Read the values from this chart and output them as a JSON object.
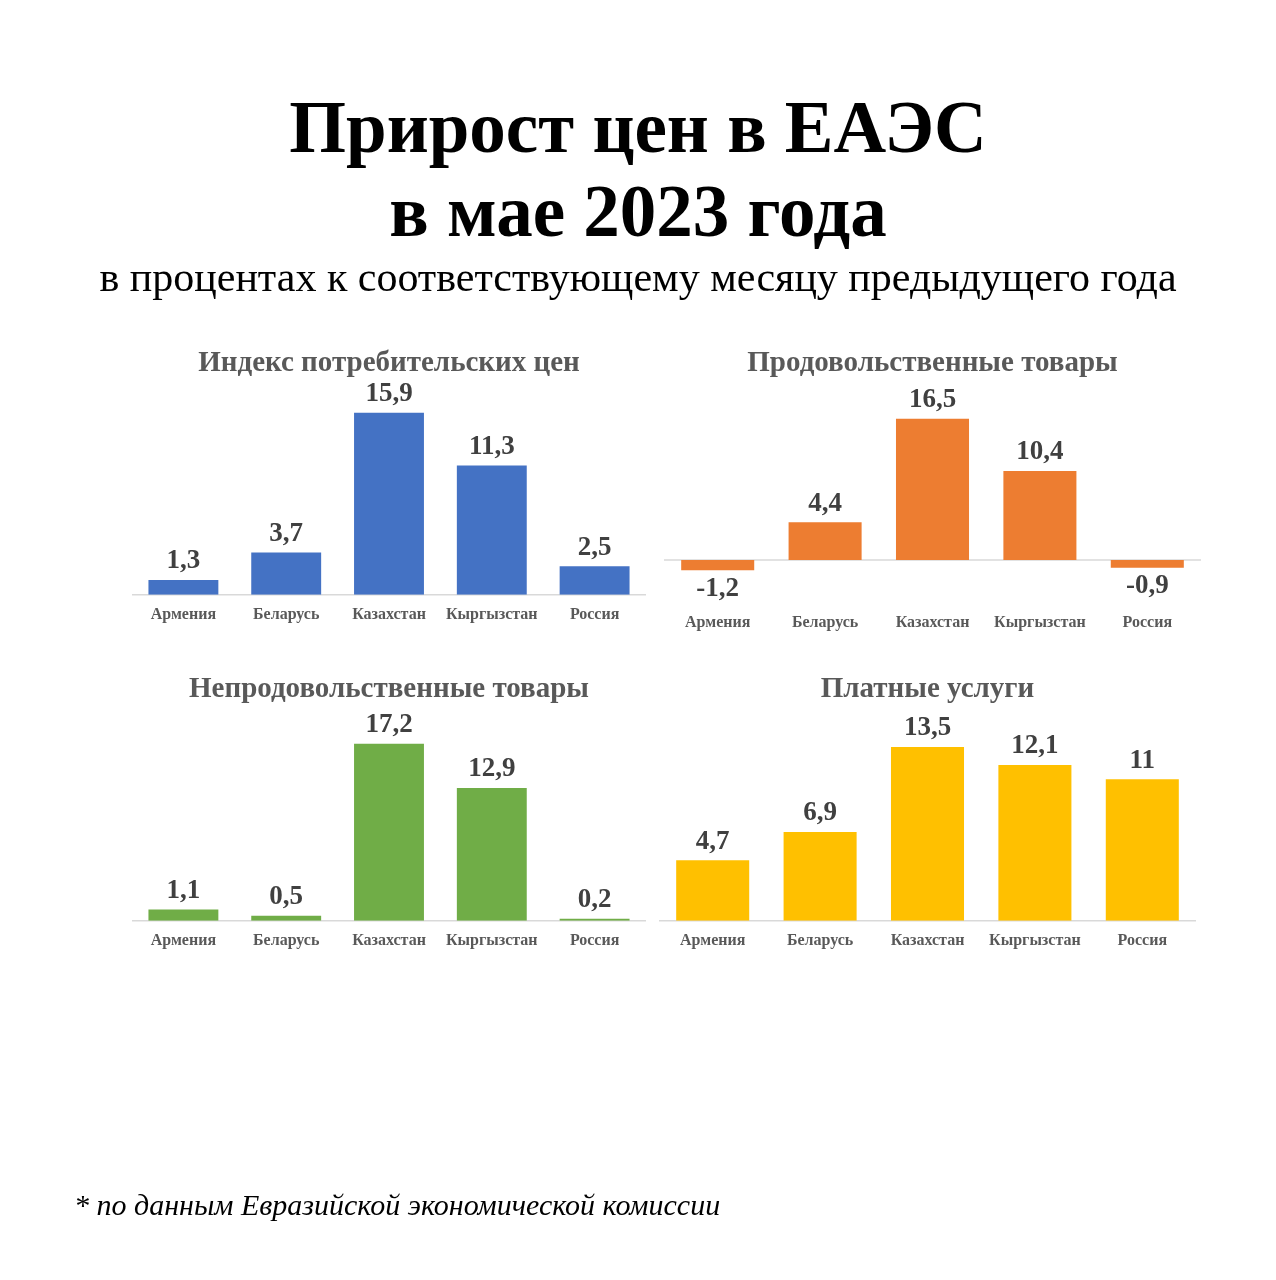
{
  "chart_data": [
    {
      "type": "other",
      "title": "Прирост цен в ЕАЭС в мае 2023 года",
      "subtitle": "в процентах к соответствующему месяцу предыдущего года",
      "annotations": [
        "* по данным Евразийской экономической комиссии"
      ]
    },
    {
      "type": "bar",
      "title": "Индекс потребительских цен",
      "categories": [
        "Армения",
        "Беларусь",
        "Казахстан",
        "Кыргызстан",
        "Россия"
      ],
      "values": [
        1.3,
        3.7,
        15.9,
        11.3,
        2.5
      ],
      "value_labels": [
        "1,3",
        "3,7",
        "15,9",
        "11,3",
        "2,5"
      ],
      "color": "#4472c4"
    },
    {
      "type": "bar",
      "title": "Продовольственные товары",
      "categories": [
        "Армения",
        "Беларусь",
        "Казахстан",
        "Кыргызстан",
        "Россия"
      ],
      "values": [
        -1.2,
        4.4,
        16.5,
        10.4,
        -0.9
      ],
      "value_labels": [
        "-1,2",
        "4,4",
        "16,5",
        "10,4",
        "-0,9"
      ],
      "color": "#ed7d31"
    },
    {
      "type": "bar",
      "title": "Непродовольственные товары",
      "categories": [
        "Армения",
        "Беларусь",
        "Казахстан",
        "Кыргызстан",
        "Россия"
      ],
      "values": [
        1.1,
        0.5,
        17.2,
        12.9,
        0.2
      ],
      "value_labels": [
        "1,1",
        "0,5",
        "17,2",
        "12,9",
        "0,2"
      ],
      "color": "#70ad47"
    },
    {
      "type": "bar",
      "title": "Платные услуги",
      "categories": [
        "Армения",
        "Беларусь",
        "Казахстан",
        "Кыргызстан",
        "Россия"
      ],
      "values": [
        4.7,
        6.9,
        13.5,
        12.1,
        11
      ],
      "value_labels": [
        "4,7",
        "6,9",
        "13,5",
        "12,1",
        "11"
      ],
      "color": "#ffc000"
    }
  ]
}
